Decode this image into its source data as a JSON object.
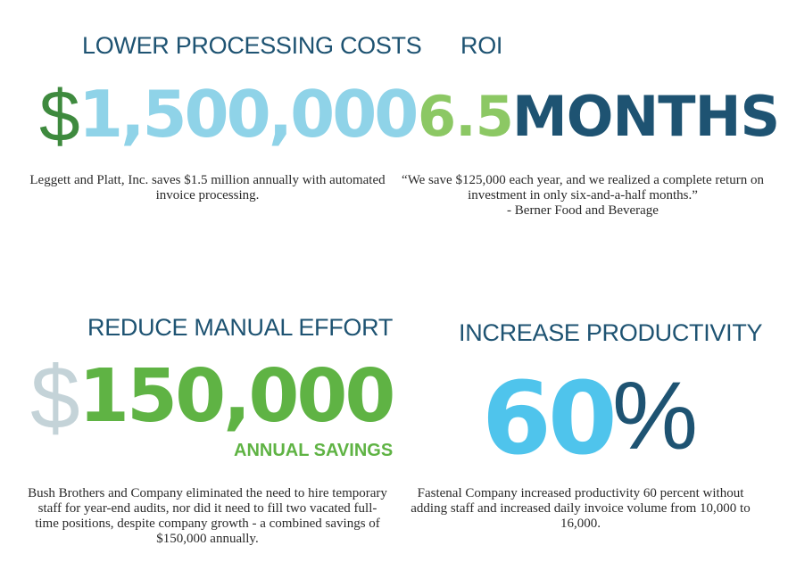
{
  "panels": {
    "top_left": {
      "heading": "LOWER PROCESSING COSTS",
      "currency_symbol": "$",
      "figure": "1,500,000",
      "description": "Leggett and Platt, Inc. saves $1.5 million annually with automated invoice processing."
    },
    "top_right": {
      "heading": "ROI",
      "figure_number": "6.5",
      "figure_unit": "MONTHS",
      "quote": "“We save $125,000 each year, and we realized a complete return on investment in only six-and-a-half months.”",
      "attribution": "- Berner Food and Beverage"
    },
    "bottom_left": {
      "heading": "REDUCE MANUAL EFFORT",
      "currency_symbol": "$",
      "figure": "150,000",
      "figure_caption": "ANNUAL SAVINGS",
      "description": "Bush Brothers and Company eliminated the need to hire temporary staff for year-end audits, nor did it need to fill two vacated full-time positions, despite company growth - a combined savings of $150,000 annually."
    },
    "bottom_right": {
      "heading": "INCREASE PRODUCTIVITY",
      "figure_number": "60",
      "figure_unit": "%",
      "description": "Fastenal Company increased productivity 60 percent without adding staff and increased daily invoice volume from 10,000 to 16,000."
    }
  },
  "colors": {
    "navy": "#1e5372",
    "light_blue": "#8fd3e8",
    "cyan": "#4fc4ec",
    "green": "#5fb344",
    "light_green": "#8cc864",
    "dark_green": "#3e8a3e",
    "grey_dollar": "#c4d3d8"
  }
}
